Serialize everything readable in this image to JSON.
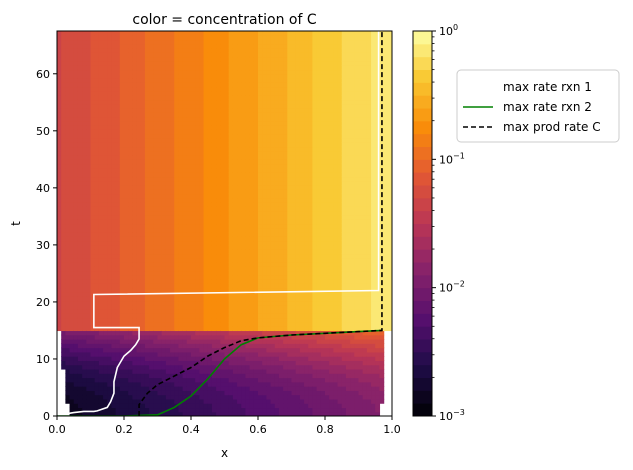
{
  "chart_data": {
    "type": "heatmap",
    "title": "color = concentration of C",
    "xlabel": "x",
    "ylabel": "t",
    "xlim": [
      0.0,
      1.0
    ],
    "ylim": [
      0,
      67.5
    ],
    "x_ticks": [
      0.0,
      0.2,
      0.4,
      0.6,
      0.8,
      1.0
    ],
    "x_tick_labels": [
      "0.0",
      "0.2",
      "0.4",
      "0.6",
      "0.8",
      "1.0"
    ],
    "y_ticks": [
      0,
      10,
      20,
      30,
      40,
      50,
      60
    ],
    "y_tick_labels": [
      "0",
      "10",
      "20",
      "30",
      "40",
      "50",
      "60"
    ],
    "colorbar": {
      "scale": "log",
      "colormap": "inferno",
      "range": [
        0.001,
        1
      ],
      "ticks": [
        {
          "value": 1,
          "base": "10",
          "exp": "0"
        },
        {
          "value": 0.1,
          "base": "10",
          "exp": "−1"
        },
        {
          "value": 0.01,
          "base": "10",
          "exp": "−2"
        },
        {
          "value": 0.001,
          "base": "10",
          "exp": "−3"
        }
      ]
    },
    "legend_position": "right-outside-top",
    "series": [
      {
        "name": "max rate rxn 1",
        "color": "#ffffff",
        "style": "solid",
        "x": [
          0.0,
          0.01,
          0.03,
          0.05,
          0.08,
          0.11,
          0.11,
          0.12,
          0.15,
          0.16,
          0.17,
          0.17,
          0.18,
          0.2,
          0.22,
          0.235,
          0.245,
          0.245,
          0.245,
          0.11,
          0.11,
          0.96,
          0.96
        ],
        "y": [
          0.0,
          0.2,
          0.4,
          0.6,
          0.8,
          0.8,
          0.8,
          0.9,
          1.5,
          2.5,
          4.0,
          6.0,
          8.5,
          10.5,
          11.5,
          12.5,
          13.5,
          15.0,
          15.5,
          15.5,
          21.3,
          22.0,
          67.5
        ],
        "path_order_note": ""
      },
      {
        "name": "max rate rxn 2",
        "color": "#008000",
        "style": "solid",
        "x": [
          0.0,
          0.1,
          0.2,
          0.3,
          0.35,
          0.4,
          0.45,
          0.5,
          0.55,
          0.6,
          0.7,
          0.8,
          0.9,
          0.97
        ],
        "y": [
          0.0,
          0.0,
          0.0,
          0.2,
          1.5,
          3.5,
          6.5,
          10.0,
          12.5,
          13.7,
          14.2,
          14.5,
          14.8,
          15.0
        ]
      },
      {
        "name": "max prod rate C",
        "color": "#000000",
        "style": "dashed",
        "x": [
          0.245,
          0.245,
          0.27,
          0.3,
          0.35,
          0.4,
          0.45,
          0.5,
          0.55,
          0.6,
          0.7,
          0.8,
          0.9,
          0.97,
          0.97,
          0.97
        ],
        "y": [
          0.0,
          2.0,
          4.0,
          5.5,
          7.0,
          8.5,
          10.5,
          12.0,
          13.2,
          13.7,
          14.2,
          14.5,
          14.8,
          15.0,
          40.0,
          67.5
        ]
      }
    ]
  }
}
